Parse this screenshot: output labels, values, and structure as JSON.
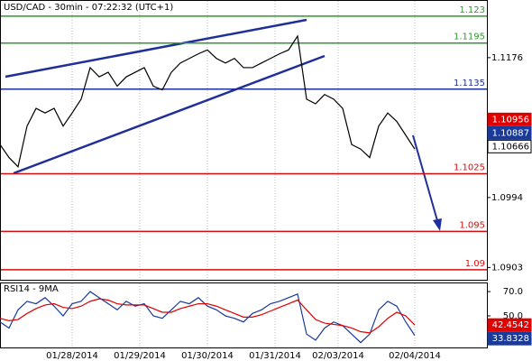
{
  "chart_data": [
    {
      "type": "line",
      "title": "USD/CAD - 30min - 07:22:32 (UTC+1)",
      "x": [
        0,
        1,
        2,
        3,
        4,
        5,
        6,
        7,
        8,
        9,
        10,
        11,
        12,
        13,
        14,
        15,
        16,
        17,
        18,
        19,
        20,
        21,
        22,
        23,
        24,
        25,
        26,
        27,
        28,
        29,
        30,
        31,
        32,
        33,
        34,
        35,
        36,
        37,
        38,
        39,
        40,
        41,
        42,
        43,
        44,
        45,
        46
      ],
      "values": [
        1.1063,
        1.1046,
        1.1034,
        1.1087,
        1.111,
        1.1104,
        1.111,
        1.1087,
        1.1104,
        1.1122,
        1.1163,
        1.1151,
        1.1157,
        1.1139,
        1.1151,
        1.1157,
        1.1163,
        1.1139,
        1.1134,
        1.1157,
        1.1169,
        1.1175,
        1.1181,
        1.1186,
        1.1175,
        1.1169,
        1.1175,
        1.1163,
        1.1163,
        1.1169,
        1.1175,
        1.1181,
        1.1186,
        1.1204,
        1.1122,
        1.1116,
        1.1128,
        1.1122,
        1.111,
        1.1063,
        1.1057,
        1.1046,
        1.1087,
        1.1104,
        1.1093,
        1.1075,
        1.1057
      ],
      "color": "#000000",
      "levels": [
        {
          "value": 1.123,
          "color": "#2e9a2e"
        },
        {
          "value": 1.1195,
          "color": "#2e9a2e"
        },
        {
          "value": 1.1135,
          "color": "#1f2f9a"
        },
        {
          "value": 1.1025,
          "color": "#d01010"
        },
        {
          "value": 1.095,
          "color": "#d01010"
        },
        {
          "value": 1.09,
          "color": "#d01010"
        }
      ],
      "readouts": [
        {
          "value": 1.10956,
          "color": "#e00000"
        },
        {
          "value": 1.10887,
          "color": "#1a3a9a"
        },
        {
          "value": 1.10666,
          "color": "#ffffff"
        }
      ],
      "xlim": [
        0,
        54
      ],
      "ylim": [
        1.0887,
        1.1251
      ],
      "yticks": [
        1.1176,
        1.0994,
        1.0903
      ]
    },
    {
      "type": "line",
      "title": "RSI14 - 9MA",
      "x": [
        0,
        1,
        2,
        3,
        4,
        5,
        6,
        7,
        8,
        9,
        10,
        11,
        12,
        13,
        14,
        15,
        16,
        17,
        18,
        19,
        20,
        21,
        22,
        23,
        24,
        25,
        26,
        27,
        28,
        29,
        30,
        31,
        32,
        33,
        34,
        35,
        36,
        37,
        38,
        39,
        40,
        41,
        42,
        43,
        44,
        45,
        46
      ],
      "series": [
        {
          "color": "#1a3a9a",
          "values": [
            45,
            40,
            55,
            62,
            60,
            65,
            58,
            50,
            60,
            62,
            70,
            65,
            60,
            55,
            62,
            58,
            60,
            50,
            48,
            55,
            62,
            60,
            65,
            58,
            55,
            50,
            48,
            45,
            52,
            55,
            60,
            62,
            65,
            68,
            35,
            30,
            40,
            45,
            42,
            35,
            28,
            35,
            55,
            62,
            58,
            45,
            33.8328
          ]
        },
        {
          "color": "#e00000",
          "values": [
            48,
            46,
            47,
            52,
            56,
            59,
            60,
            57,
            56,
            58,
            62,
            64,
            63,
            60,
            59,
            59,
            59,
            56,
            53,
            53,
            56,
            58,
            60,
            60,
            58,
            55,
            52,
            49,
            49,
            51,
            54,
            57,
            60,
            63,
            55,
            47,
            44,
            43,
            42,
            40,
            37,
            36,
            41,
            48,
            53,
            50,
            42.4542
          ]
        }
      ],
      "readouts": [
        {
          "value": 42.4542,
          "color": "#e00000"
        },
        {
          "value": 33.8328,
          "color": "#1a3a9a"
        }
      ],
      "xlim": [
        0,
        54
      ],
      "ylim": [
        24,
        77.5
      ],
      "yticks": [
        {
          "value": 70,
          "label": "70.0"
        },
        {
          "value": 50,
          "label": "50.0"
        }
      ],
      "xticks": [
        {
          "value": 8,
          "label": "01/28/2014"
        },
        {
          "value": 15.5,
          "label": "01/29/2014"
        },
        {
          "value": 23,
          "label": "01/30/2014"
        },
        {
          "value": 30.5,
          "label": "01/31/2014"
        },
        {
          "value": 37.5,
          "label": "02/03/2014"
        },
        {
          "value": 46,
          "label": "02/04/2014"
        }
      ]
    }
  ]
}
